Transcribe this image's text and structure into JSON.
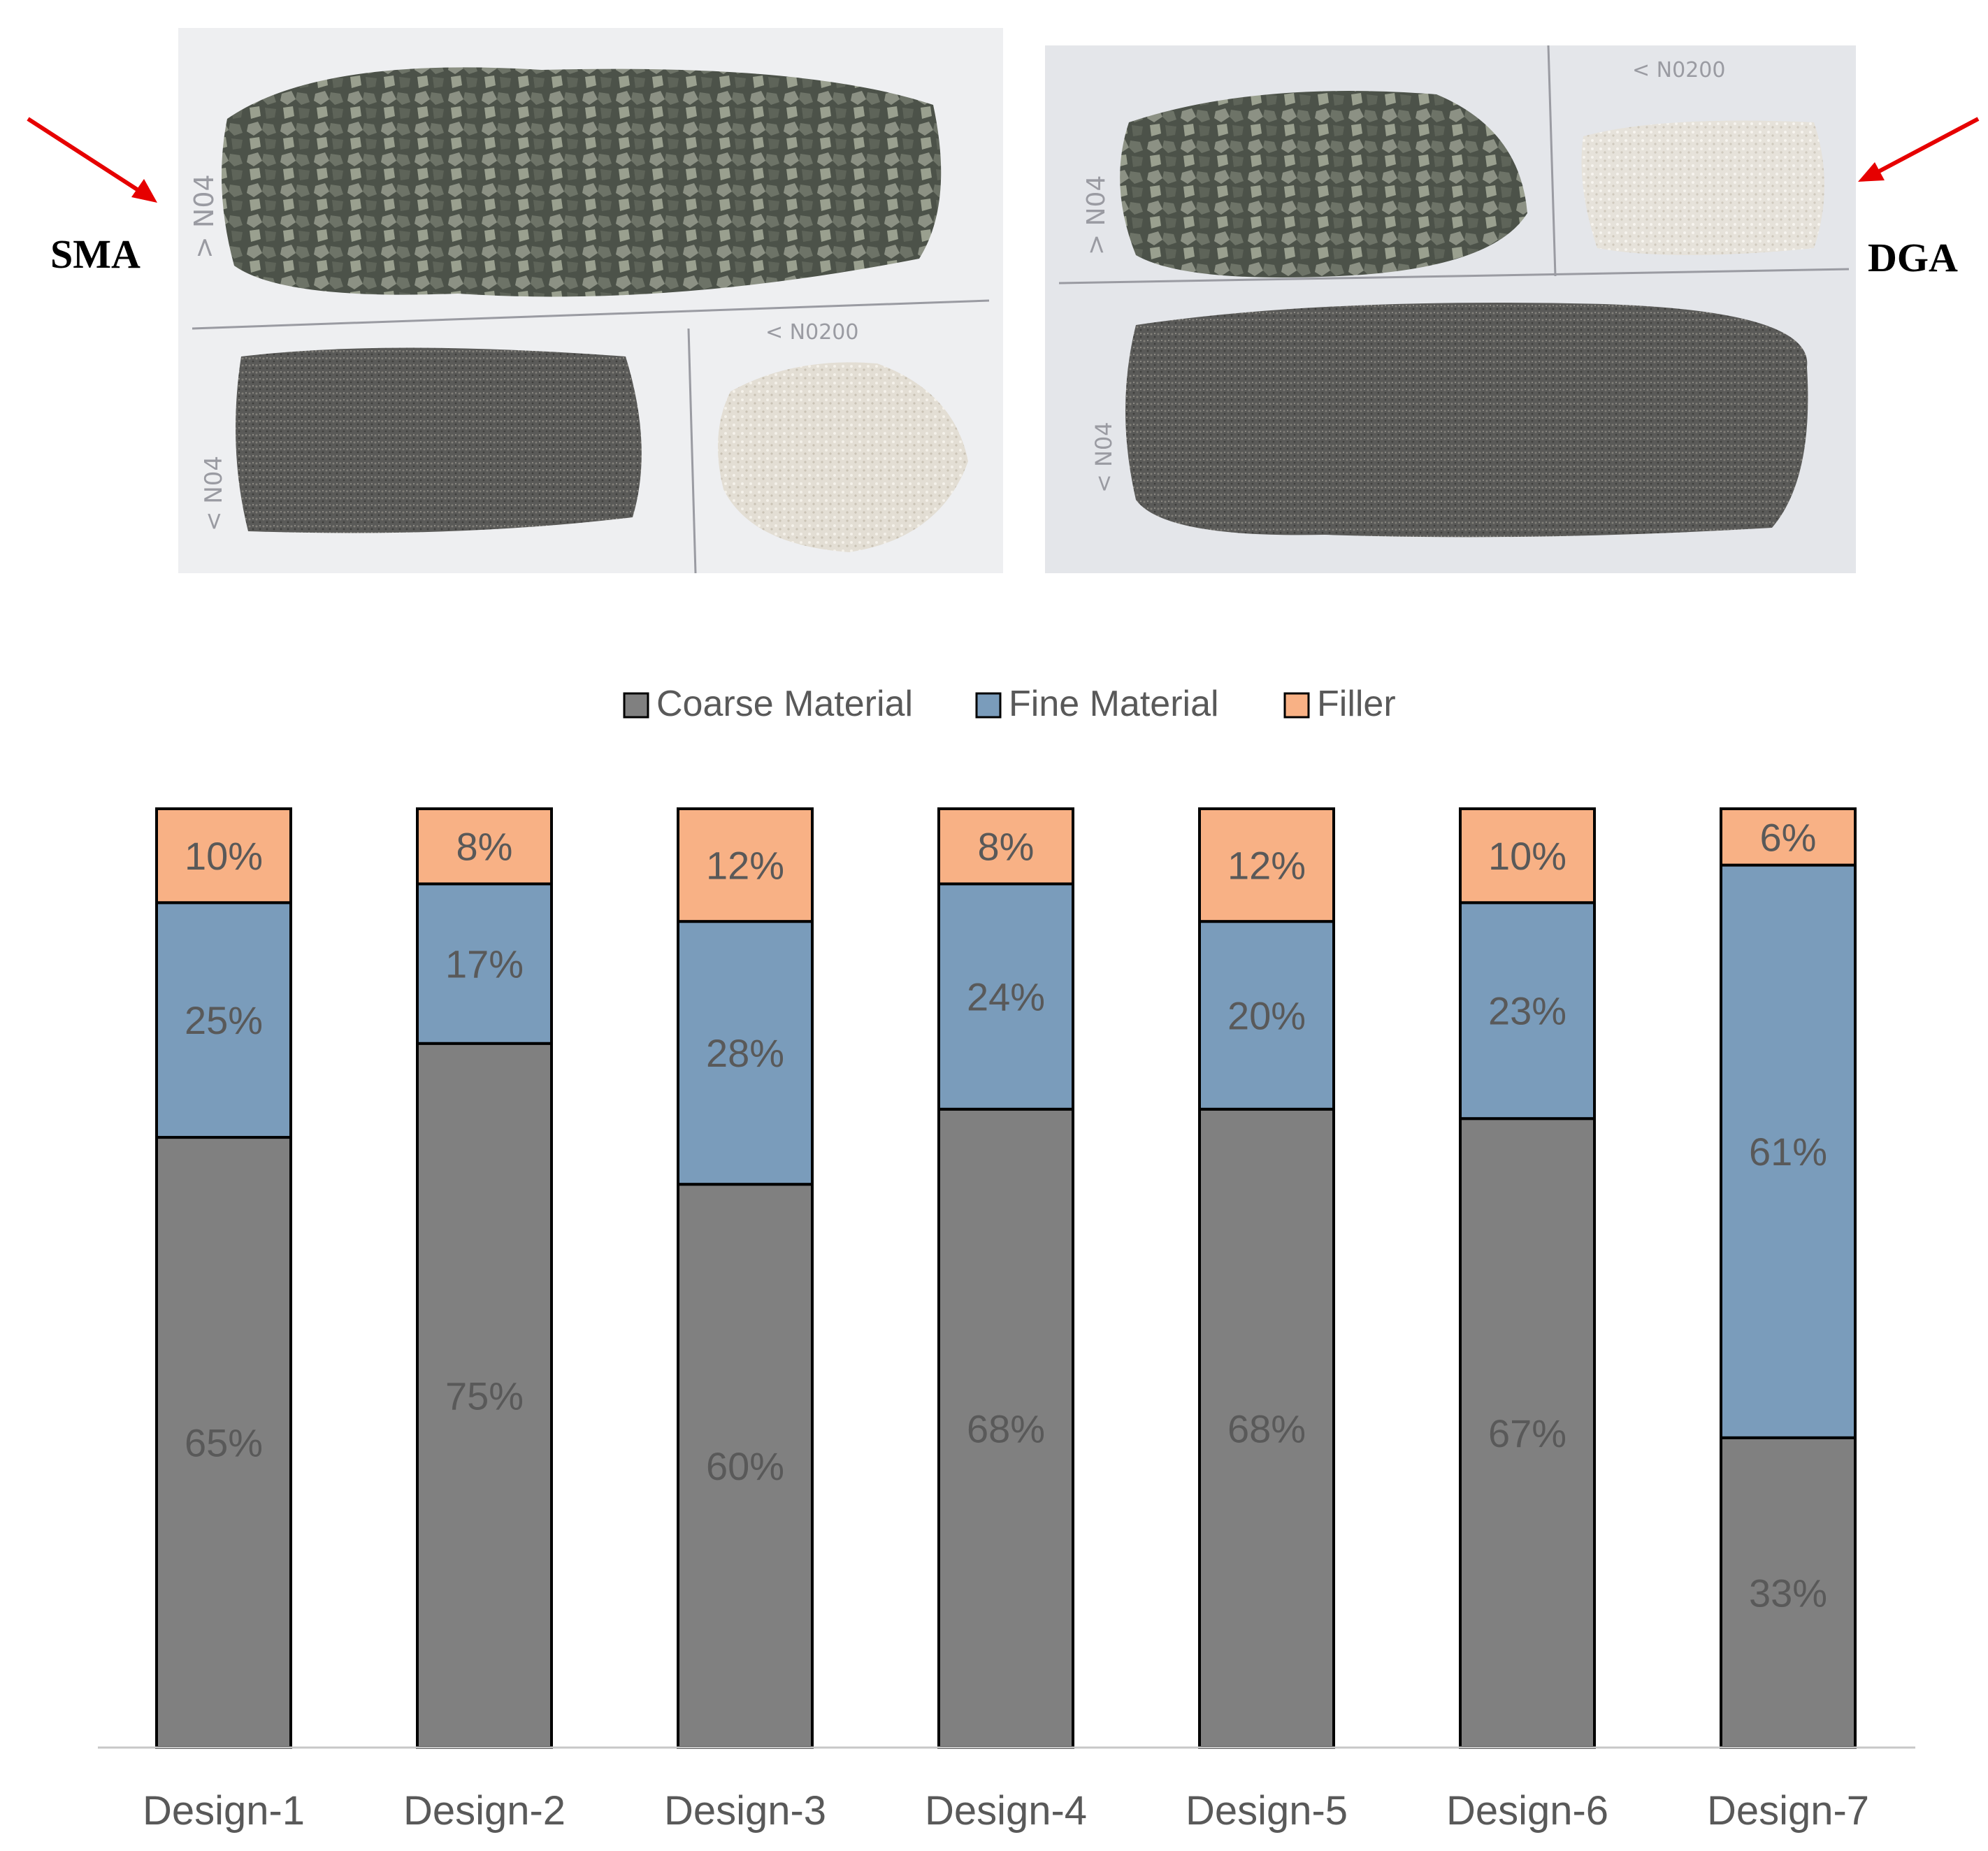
{
  "figure": {
    "sma_label": "SMA",
    "dga_label": "DGA",
    "arrow_color": "#e60000",
    "photos": {
      "sma": {
        "samples": [
          {
            "sieve_text": "> N04",
            "material": "coarse-aggregate"
          },
          {
            "sieve_text": "< N04",
            "material": "fine-aggregate"
          },
          {
            "sieve_text": "< N0200",
            "material": "filler"
          }
        ]
      },
      "dga": {
        "samples": [
          {
            "sieve_text": "> N04",
            "material": "coarse-aggregate"
          },
          {
            "sieve_text": "< N0200",
            "material": "filler"
          },
          {
            "sieve_text": "< N04",
            "material": "fine-aggregate"
          }
        ]
      }
    }
  },
  "chart_data": {
    "type": "bar",
    "stacked": true,
    "percent_stacked": true,
    "categories": [
      "Design-1",
      "Design-2",
      "Design-3",
      "Design-4",
      "Design-5",
      "Design-6",
      "Design-7"
    ],
    "series": [
      {
        "name": "Coarse Material",
        "color": "#808080",
        "values": [
          65,
          75,
          60,
          68,
          68,
          67,
          33
        ],
        "labels": [
          "65%",
          "75%",
          "60%",
          "68%",
          "68%",
          "67%",
          "33%"
        ]
      },
      {
        "name": "Fine Material",
        "color": "#7a9cbb",
        "values": [
          25,
          17,
          28,
          24,
          20,
          23,
          61
        ],
        "labels": [
          "25%",
          "17%",
          "28%",
          "24%",
          "20%",
          "23%",
          "61%"
        ]
      },
      {
        "name": "Filler",
        "color": "#f8b185",
        "values": [
          10,
          8,
          12,
          8,
          12,
          10,
          6
        ],
        "labels": [
          "10%",
          "8%",
          "12%",
          "8%",
          "12%",
          "10%",
          "6%"
        ]
      }
    ],
    "ylim": [
      0,
      100
    ],
    "grid": false,
    "legend_position": "top-center",
    "label_color": "#595959"
  }
}
